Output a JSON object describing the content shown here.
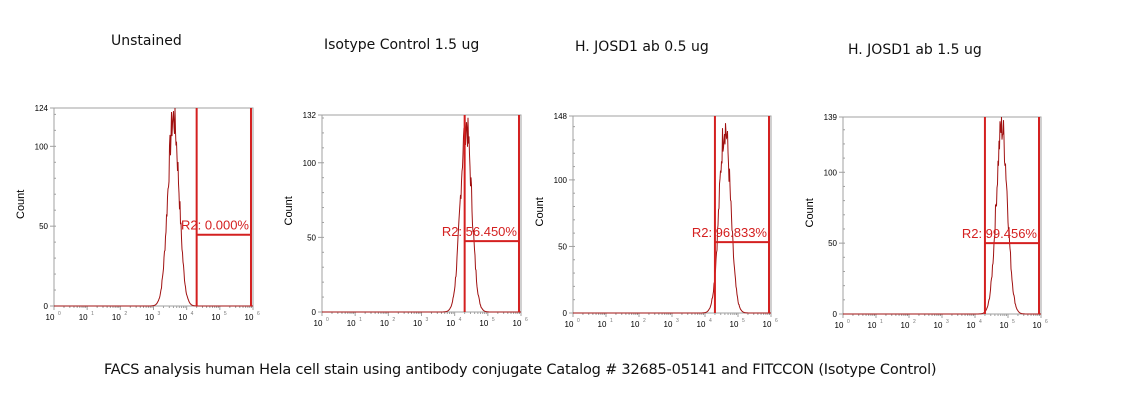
{
  "figure": {
    "caption": "FACS analysis human Hela cell stain using antibody conjugate Catalog # 32685-05141 and FITCCON (Isotype Control)",
    "colors": {
      "histogram": "#a01010",
      "gate": "#d42020",
      "axis": "#a0a0a0"
    }
  },
  "panels": [
    {
      "title": "Unstained",
      "ylabel": "Count",
      "ymax_label": "124",
      "gate_label": "R2: 0.000%"
    },
    {
      "title": "Isotype Control 1.5 ug",
      "ylabel": "Count",
      "ymax_label": "132",
      "gate_label": "R2: 56.450%"
    },
    {
      "title": "H. JOSD1 ab 0.5 ug",
      "ylabel": "Count",
      "ymax_label": "148",
      "gate_label": "R2: 96.833%"
    },
    {
      "title": "H. JOSD1 ab 1.5 ug",
      "ylabel": "Count",
      "ymax_label": "139",
      "gate_label": "R2: 99.456%"
    }
  ],
  "chart_data": [
    {
      "type": "area",
      "title": "Unstained",
      "xlabel": "",
      "ylabel": "Count",
      "xscale": "log",
      "xlim": [
        1,
        1000000
      ],
      "ylim": [
        0,
        124
      ],
      "x_ticks": [
        "10^0",
        "10^1",
        "10^2",
        "10^3",
        "10^4",
        "10^5",
        "10^6"
      ],
      "y_ticks": [
        0,
        50,
        100,
        124
      ],
      "peak": {
        "x": 4000,
        "count": 124
      },
      "gate": {
        "name": "R2",
        "x_from": 20000,
        "x_to": 870000,
        "percent": 0.0,
        "label": "R2: 0.000%"
      },
      "grid": false
    },
    {
      "type": "area",
      "title": "Isotype Control 1.5 ug",
      "xlabel": "",
      "ylabel": "Count",
      "xscale": "log",
      "xlim": [
        1,
        1000000
      ],
      "ylim": [
        0,
        132
      ],
      "x_ticks": [
        "10^0",
        "10^1",
        "10^2",
        "10^3",
        "10^4",
        "10^5",
        "10^6"
      ],
      "y_ticks": [
        0,
        50,
        100,
        132
      ],
      "peak": {
        "x": 22000,
        "count": 132
      },
      "gate": {
        "name": "R2",
        "x_from": 20000,
        "x_to": 870000,
        "percent": 56.45,
        "label": "R2: 56.450%"
      },
      "grid": false
    },
    {
      "type": "area",
      "title": "H. JOSD1 ab 0.5 ug",
      "xlabel": "",
      "ylabel": "Count",
      "xscale": "log",
      "xlim": [
        1,
        1000000
      ],
      "ylim": [
        0,
        148
      ],
      "x_ticks": [
        "10^0",
        "10^1",
        "10^2",
        "10^3",
        "10^4",
        "10^5",
        "10^6"
      ],
      "y_ticks": [
        0,
        50,
        100,
        148
      ],
      "peak": {
        "x": 40000,
        "count": 148
      },
      "gate": {
        "name": "R2",
        "x_from": 20000,
        "x_to": 870000,
        "percent": 96.833,
        "label": "R2: 96.833%"
      },
      "grid": false
    },
    {
      "type": "area",
      "title": "H. JOSD1 ab 1.5 ug",
      "xlabel": "",
      "ylabel": "Count",
      "xscale": "log",
      "xlim": [
        1,
        1000000
      ],
      "ylim": [
        0,
        139
      ],
      "x_ticks": [
        "10^0",
        "10^1",
        "10^2",
        "10^3",
        "10^4",
        "10^5",
        "10^6"
      ],
      "y_ticks": [
        0,
        50,
        100,
        139
      ],
      "peak": {
        "x": 65000,
        "count": 139
      },
      "gate": {
        "name": "R2",
        "x_from": 20000,
        "x_to": 870000,
        "percent": 99.456,
        "label": "R2: 99.456%"
      },
      "grid": false
    }
  ]
}
